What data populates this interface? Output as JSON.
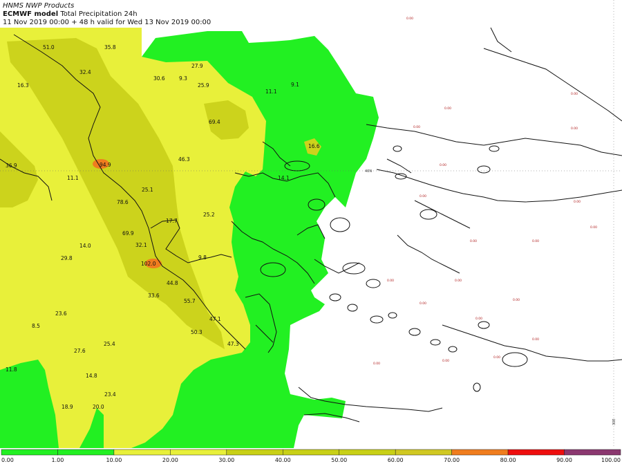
{
  "header": {
    "institution": "HNMS NWP Products",
    "model": "ECMWF model",
    "product": "Total Precipitation 24h",
    "validity": "11 Nov 2019 00:00 + 48 h valid for Wed 13 Nov 2019 00:00"
  },
  "colorbar": {
    "ticks": [
      "0.00",
      "1.00",
      "10.00",
      "20.00",
      "30.00",
      "40.00",
      "50.00",
      "60.00",
      "70.00",
      "80.00",
      "90.00",
      "100.00"
    ],
    "colors": [
      "#ffffff",
      "#22f022",
      "#22f022",
      "#e8f03a",
      "#e8f03a",
      "#c8d016",
      "#c8d016",
      "#c8d016",
      "#d0c822",
      "#f07d1e",
      "#ee0e0e",
      "#8b3870"
    ]
  },
  "gridlines": {
    "lat": "40N",
    "lon": "30E"
  },
  "values": [
    {
      "id": "v1",
      "text": "51.0"
    },
    {
      "id": "v2",
      "text": "35.8"
    },
    {
      "id": "v3",
      "text": "32.4"
    },
    {
      "id": "v4",
      "text": "16.3"
    },
    {
      "id": "v5",
      "text": "30.6"
    },
    {
      "id": "v6",
      "text": "9.3"
    },
    {
      "id": "v7",
      "text": "27.9"
    },
    {
      "id": "v8",
      "text": "25.9"
    },
    {
      "id": "v9",
      "text": "11.1"
    },
    {
      "id": "v10",
      "text": "9.1"
    },
    {
      "id": "v11",
      "text": "69.4"
    },
    {
      "id": "v12",
      "text": "36.9"
    },
    {
      "id": "v13",
      "text": "11.1"
    },
    {
      "id": "v14",
      "text": "46.3"
    },
    {
      "id": "v15",
      "text": "14.1"
    },
    {
      "id": "v16",
      "text": "25.1"
    },
    {
      "id": "v17",
      "text": "25.2"
    },
    {
      "id": "v18",
      "text": "69.9"
    },
    {
      "id": "v19",
      "text": "14.0"
    },
    {
      "id": "v20",
      "text": "32.1"
    },
    {
      "id": "v21",
      "text": "29.8"
    },
    {
      "id": "v22",
      "text": "9.8"
    },
    {
      "id": "v23",
      "text": "33.6"
    },
    {
      "id": "v24",
      "text": "55.7"
    },
    {
      "id": "v25",
      "text": "23.6"
    },
    {
      "id": "v26",
      "text": "47.1"
    },
    {
      "id": "v27",
      "text": "8.5"
    },
    {
      "id": "v28",
      "text": "50.3"
    },
    {
      "id": "v29",
      "text": "47.3"
    },
    {
      "id": "v30",
      "text": "27.6"
    },
    {
      "id": "v31",
      "text": "25.4"
    },
    {
      "id": "v32",
      "text": "11.8"
    },
    {
      "id": "v33",
      "text": "14.8"
    },
    {
      "id": "v34",
      "text": "23.4"
    },
    {
      "id": "v35",
      "text": "18.9"
    },
    {
      "id": "v36",
      "text": "20.0"
    },
    {
      "id": "v37",
      "text": "78.6"
    },
    {
      "id": "v38",
      "text": "44.8"
    },
    {
      "id": "v39",
      "text": "17.7"
    },
    {
      "id": "v40",
      "text": "102.0"
    },
    {
      "id": "v41",
      "text": "94.9"
    },
    {
      "id": "v42",
      "text": "16.6"
    }
  ],
  "dry_values": [
    {
      "id": "d1",
      "text": "0.00"
    },
    {
      "id": "d2",
      "text": "0.00"
    },
    {
      "id": "d3",
      "text": "0.00"
    },
    {
      "id": "d4",
      "text": "0.00"
    },
    {
      "id": "d5",
      "text": "0.00"
    },
    {
      "id": "d6",
      "text": "0.00"
    },
    {
      "id": "d7",
      "text": "0.00"
    },
    {
      "id": "d8",
      "text": "0.00"
    },
    {
      "id": "d9",
      "text": "0.00"
    },
    {
      "id": "d10",
      "text": "0.00"
    },
    {
      "id": "d11",
      "text": "0.00"
    },
    {
      "id": "d12",
      "text": "0.00"
    },
    {
      "id": "d13",
      "text": "0.00"
    },
    {
      "id": "d14",
      "text": "0.00"
    },
    {
      "id": "d15",
      "text": "0.00"
    },
    {
      "id": "d16",
      "text": "0.00"
    },
    {
      "id": "d17",
      "text": "0.00"
    },
    {
      "id": "d18",
      "text": "0.00"
    },
    {
      "id": "d19",
      "text": "0.00"
    },
    {
      "id": "d20",
      "text": "0.00"
    }
  ]
}
